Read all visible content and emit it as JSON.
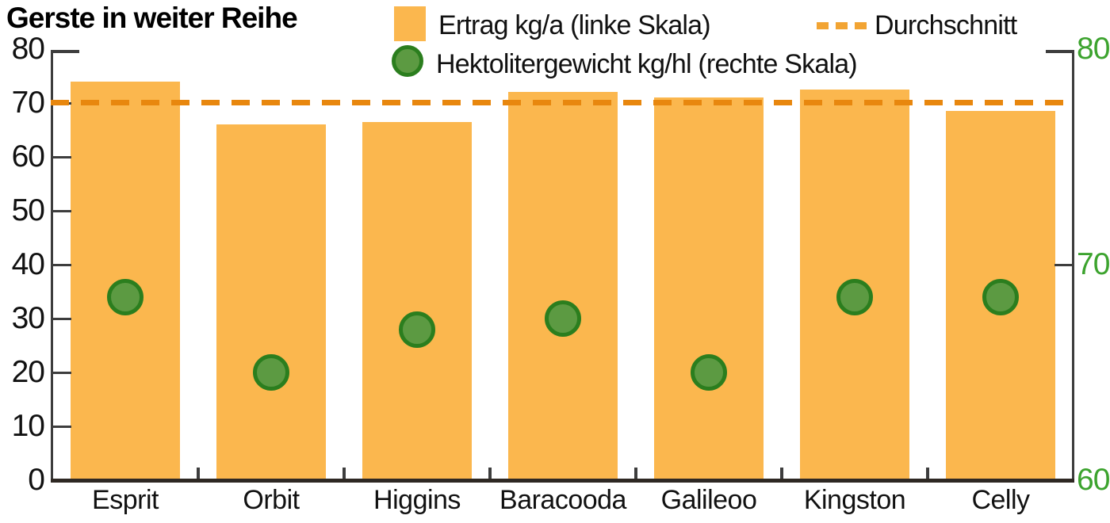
{
  "title": "Gerste in weiter Reihe",
  "legend": {
    "bar_swatch": "orange-square",
    "dot_swatch": "green-circle",
    "dash_swatch": "orange-dashes"
  },
  "colors": {
    "bar": "#FBB74E",
    "dash_line": "#E8870E",
    "dash_legend": "#F2A433",
    "dot_fill": "#5C9A42",
    "dot_border": "#2B7E1E",
    "right_axis_text": "#3CA32E",
    "axis_line": "#3D3D3D",
    "bottom_axis_line": "#2E2823",
    "text": "#111111"
  },
  "chart_data": {
    "type": "bar",
    "title": "Gerste in weiter Reihe",
    "categories": [
      "Esprit",
      "Orbit",
      "Higgins",
      "Baracooda",
      "Galileoo",
      "Kingston",
      "Celly"
    ],
    "series": [
      {
        "name": "Ertrag kg/a (linke Skala)",
        "type": "bar",
        "axis": "left",
        "values": [
          74,
          66,
          66.5,
          72,
          71,
          72.5,
          68.5
        ]
      },
      {
        "name": "Hektolitergewicht kg/hl (rechte Skala)",
        "type": "scatter",
        "axis": "right",
        "values": [
          68.5,
          65,
          67,
          67.5,
          65,
          68.5,
          68.5
        ]
      },
      {
        "name": "Durchschnitt",
        "type": "dashed-line",
        "axis": "left",
        "value": 70.1
      }
    ],
    "left_axis": {
      "min": 0,
      "max": 80,
      "ticks": [
        80,
        70,
        60,
        50,
        40,
        30,
        20,
        10,
        0
      ]
    },
    "right_axis": {
      "min": 60,
      "max": 80,
      "ticks": [
        80,
        70,
        60
      ]
    },
    "legend_position": "top",
    "grid": false
  }
}
